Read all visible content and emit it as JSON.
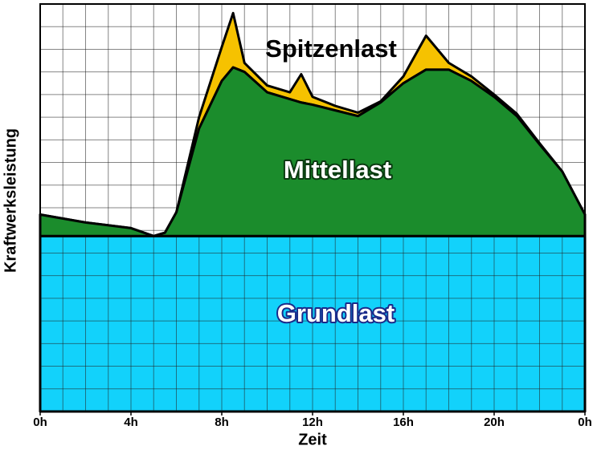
{
  "chart_data": {
    "type": "stacked-area",
    "x_label": "Zeit",
    "y_label": "Kraftwerksleistung",
    "x": [
      0,
      2,
      4,
      5,
      5.5,
      6,
      7,
      8,
      8.5,
      9,
      10,
      11,
      11.5,
      12,
      13,
      14,
      15,
      16,
      17,
      18,
      19,
      20,
      21,
      22,
      23,
      24
    ],
    "series": [
      {
        "name": "Grundlast",
        "color": "#12d2fb",
        "values": [
          7.75,
          7.75,
          7.75,
          7.75,
          7.75,
          7.75,
          7.75,
          7.75,
          7.75,
          7.75,
          7.75,
          7.75,
          7.75,
          7.75,
          7.75,
          7.75,
          7.75,
          7.75,
          7.75,
          7.75,
          7.75,
          7.75,
          7.75,
          7.75,
          7.75,
          7.75
        ]
      },
      {
        "name": "Mittellast",
        "color": "#1b8c2c",
        "values": [
          0.95,
          0.6,
          0.35,
          0,
          0.15,
          1.05,
          4.75,
          6.85,
          7.45,
          7.25,
          6.35,
          6.05,
          5.9,
          5.8,
          5.55,
          5.3,
          5.9,
          6.75,
          7.35,
          7.35,
          6.85,
          6.15,
          5.3,
          4.05,
          2.85,
          0.95
        ]
      },
      {
        "name": "Spitzenlast",
        "color": "#f6c200",
        "values": [
          0,
          0,
          0,
          0,
          0,
          0,
          0.5,
          1.5,
          2.4,
          0.4,
          0.3,
          0.3,
          1.25,
          0.35,
          0.2,
          0.15,
          0.05,
          0.3,
          1.5,
          0.3,
          0.2,
          0.1,
          0.1,
          0.05,
          0,
          0
        ]
      }
    ],
    "xlim": [
      0,
      24
    ],
    "ylim": [
      0,
      18
    ],
    "xticks": [
      {
        "value": 0,
        "label": "0h"
      },
      {
        "value": 4,
        "label": "4h"
      },
      {
        "value": 8,
        "label": "8h"
      },
      {
        "value": 12,
        "label": "12h"
      },
      {
        "value": 16,
        "label": "16h"
      },
      {
        "value": 20,
        "label": "20h"
      },
      {
        "value": 24,
        "label": "0h"
      }
    ],
    "grid": true,
    "xgrid": [
      0,
      1,
      2,
      3,
      4,
      5,
      6,
      7,
      8,
      9,
      10,
      11,
      12,
      13,
      14,
      15,
      16,
      17,
      18,
      19,
      20,
      21,
      22,
      23,
      24
    ],
    "ygrid": [
      0,
      1,
      2,
      3,
      4,
      5,
      6,
      7,
      8,
      9,
      10,
      11,
      12,
      13,
      14,
      15,
      16,
      17,
      18
    ]
  }
}
